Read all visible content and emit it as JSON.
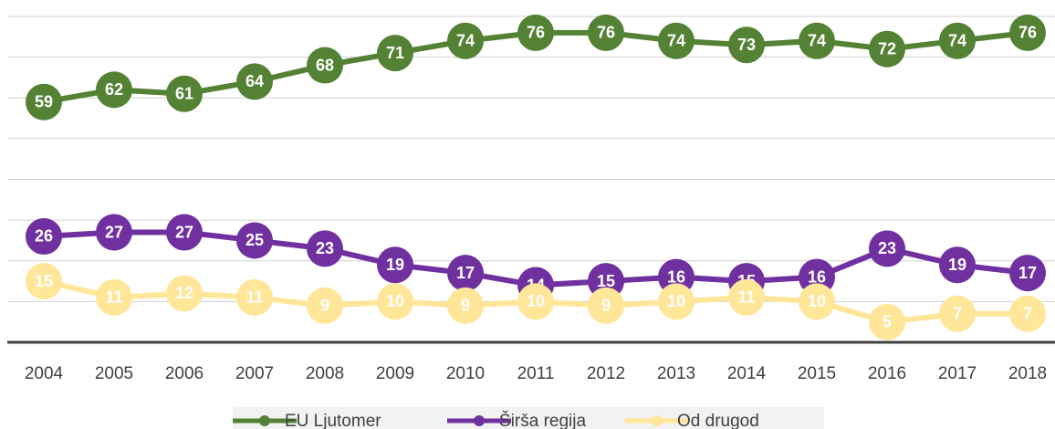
{
  "chart_data": {
    "type": "line",
    "x": [
      2004,
      2005,
      2006,
      2007,
      2008,
      2009,
      2010,
      2011,
      2012,
      2013,
      2014,
      2015,
      2016,
      2017,
      2018
    ],
    "series": [
      {
        "name": "EU Ljutomer",
        "color": "#548235",
        "values": [
          59,
          62,
          61,
          64,
          68,
          71,
          74,
          76,
          76,
          74,
          73,
          74,
          72,
          74,
          76
        ]
      },
      {
        "name": "Širša regija",
        "color": "#7030a0",
        "values": [
          26,
          27,
          27,
          25,
          23,
          19,
          17,
          14,
          15,
          16,
          15,
          16,
          23,
          19,
          17
        ]
      },
      {
        "name": "Od drugod",
        "color": "#ffe699",
        "values": [
          15,
          11,
          12,
          11,
          9,
          10,
          9,
          10,
          9,
          10,
          11,
          10,
          5,
          7,
          7
        ]
      }
    ],
    "ylim": [
      0,
      80
    ],
    "yticks": [
      0,
      10,
      20,
      30,
      40,
      50,
      60,
      70,
      80
    ],
    "grid": true,
    "legend": "bottom"
  }
}
